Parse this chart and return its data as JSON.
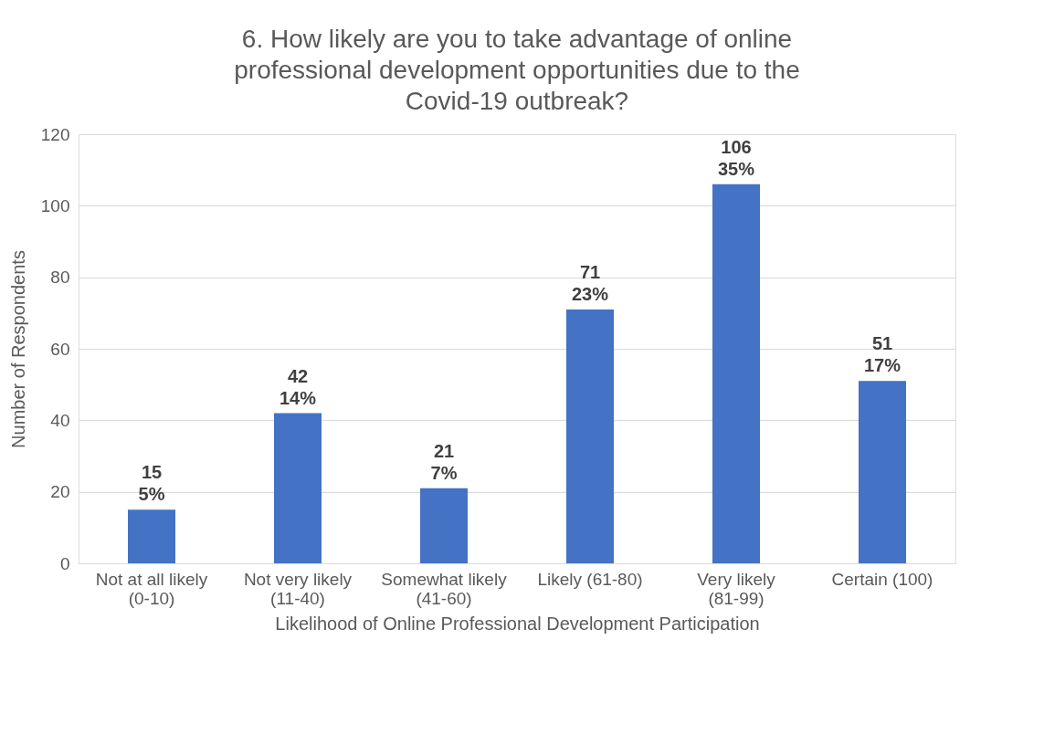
{
  "chart_data": {
    "type": "bar",
    "title": "6. How likely are you to take advantage of online professional development opportunities due to the Covid-19 outbreak?",
    "xlabel": "Likelihood of Online Professional Development Participation",
    "ylabel": "Number of Respondents",
    "categories": [
      "Not at all likely (0-10)",
      "Not very likely (11-40)",
      "Somewhat likely (41-60)",
      "Likely (61-80)",
      "Very likely (81-99)",
      "Certain (100)"
    ],
    "values": [
      15,
      42,
      21,
      71,
      106,
      51
    ],
    "value_labels": [
      "15\n5%",
      "42\n14%",
      "21\n7%",
      "71\n23%",
      "106\n35%",
      "51\n17%"
    ],
    "color": "#4472c4",
    "ylim": [
      0,
      120
    ],
    "yticks": [
      0,
      20,
      40,
      60,
      80,
      100,
      120
    ],
    "grid": "y"
  }
}
